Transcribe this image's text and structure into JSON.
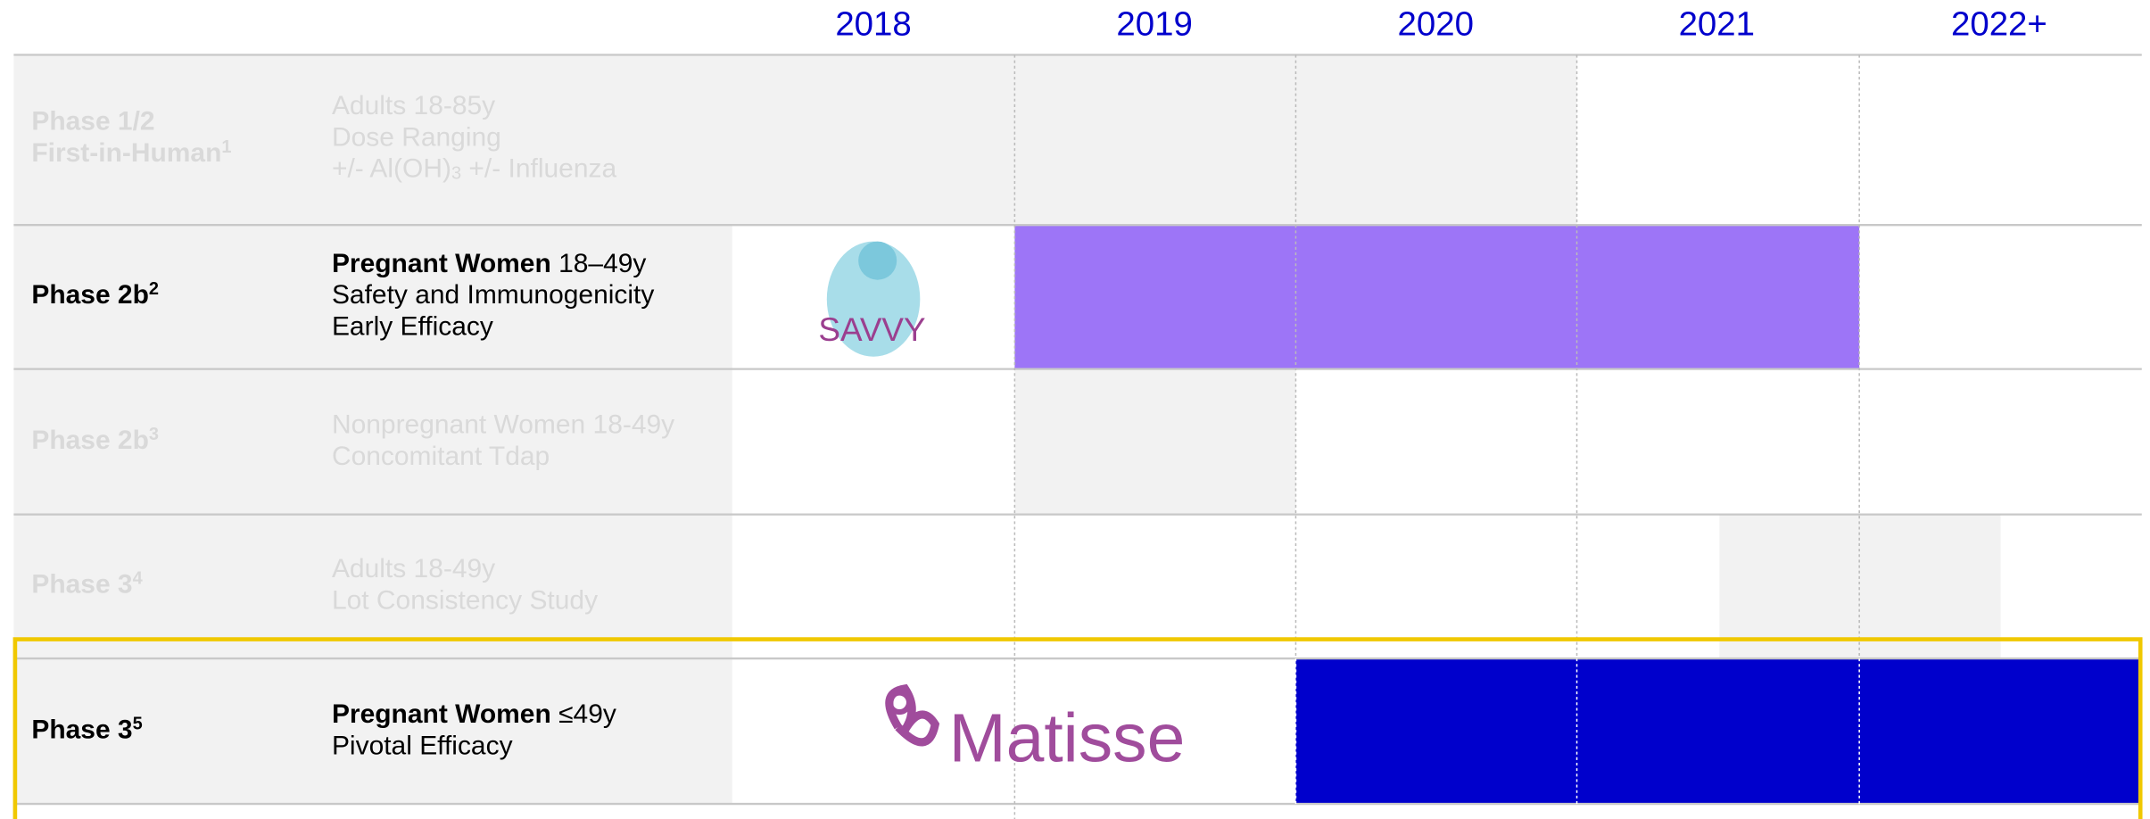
{
  "years": [
    "2018",
    "2019",
    "2020",
    "2021",
    "2022+"
  ],
  "rows": [
    {
      "faded": true,
      "phase": [
        [
          {
            "text": "Phase 1/2"
          }
        ],
        [
          {
            "text": "First-in-Human"
          },
          {
            "text": "1",
            "style": "sup"
          }
        ]
      ],
      "lines": [
        [
          {
            "text": "Adults 18-85y"
          }
        ],
        [
          {
            "text": "Dose Ranging"
          }
        ],
        [
          {
            "text": "+/- Al(OH)"
          },
          {
            "text": "3",
            "style": "sub"
          },
          {
            "text": " +/- Influenza"
          }
        ]
      ]
    },
    {
      "faded": false,
      "phase": [
        [
          {
            "text": "Phase 2b"
          },
          {
            "text": "2",
            "style": "sup"
          }
        ]
      ],
      "lines": [
        [
          {
            "text": "Pregnant Women",
            "style": "bold"
          },
          {
            "text": " 18–49y"
          }
        ],
        [
          {
            "text": "Safety and Immunogenicity"
          }
        ],
        [
          {
            "text": "Early Efficacy"
          }
        ]
      ],
      "logo": "SAVVY"
    },
    {
      "faded": true,
      "phase": [
        [
          {
            "text": "Phase 2b"
          },
          {
            "text": "3",
            "style": "sup"
          }
        ]
      ],
      "lines": [
        [
          {
            "text": "Nonpregnant Women 18-49y"
          }
        ],
        [
          {
            "text": "Concomitant Tdap"
          }
        ]
      ]
    },
    {
      "faded": true,
      "phase": [
        [
          {
            "text": "Phase 3"
          },
          {
            "text": "4",
            "style": "sup"
          }
        ]
      ],
      "lines": [
        [
          {
            "text": "Adults 18-49y"
          }
        ],
        [
          {
            "text": "Lot Consistency Study"
          }
        ]
      ]
    },
    {
      "faded": false,
      "phase": [
        [
          {
            "text": "Phase 3"
          },
          {
            "text": "5",
            "style": "sup"
          }
        ]
      ],
      "lines": [
        [
          {
            "text": "Pregnant Women",
            "style": "bold"
          },
          {
            "text": " ≤49y"
          }
        ],
        [
          {
            "text": "Pivotal Efficacy"
          }
        ]
      ],
      "logo": "Matisse"
    }
  ]
}
